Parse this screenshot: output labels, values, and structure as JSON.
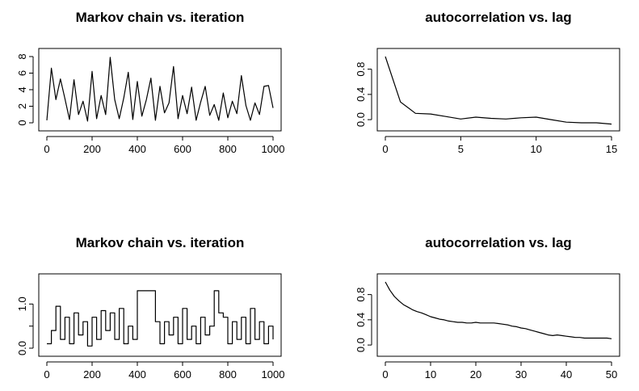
{
  "chart_data": [
    {
      "type": "line",
      "title": "Markov chain vs. iteration",
      "xlabel": "",
      "ylabel": "",
      "xlim": [
        0,
        1000
      ],
      "ylim": [
        0,
        8
      ],
      "xticks": [
        0,
        200,
        400,
        600,
        800,
        1000
      ],
      "yticks": [
        0,
        2,
        4,
        6,
        8
      ],
      "step": false,
      "series": [
        {
          "x": [
            0,
            20,
            40,
            60,
            80,
            100,
            120,
            140,
            160,
            180,
            200,
            220,
            240,
            260,
            280,
            300,
            320,
            340,
            360,
            380,
            400,
            420,
            440,
            460,
            480,
            500,
            520,
            540,
            560,
            580,
            600,
            620,
            640,
            660,
            680,
            700,
            720,
            740,
            760,
            780,
            800,
            820,
            840,
            860,
            880,
            900,
            920,
            940,
            960,
            980,
            1000
          ],
          "values": [
            0.3,
            6.6,
            2.8,
            5.3,
            2.9,
            0.4,
            5.2,
            1.0,
            2.6,
            0.2,
            6.2,
            0.5,
            3.3,
            1.0,
            7.9,
            2.8,
            0.5,
            3.0,
            6.1,
            0.4,
            5.0,
            0.8,
            2.8,
            5.4,
            0.3,
            4.4,
            1.2,
            2.4,
            6.8,
            0.5,
            3.3,
            1.1,
            4.3,
            0.3,
            2.5,
            4.4,
            0.9,
            2.2,
            0.3,
            3.6,
            0.6,
            2.6,
            1.1,
            5.7,
            2.1,
            0.3,
            2.4,
            1.0,
            4.4,
            4.5,
            1.8
          ]
        }
      ]
    },
    {
      "type": "line",
      "title": "autocorrelation vs. lag",
      "xlabel": "",
      "ylabel": "",
      "xlim": [
        0,
        15
      ],
      "ylim": [
        -0.05,
        1.0
      ],
      "xticks": [
        0,
        5,
        10,
        15
      ],
      "yticks": [
        0.0,
        0.4,
        0.8
      ],
      "yticklabels": [
        "0.0",
        "0.4",
        "0.8"
      ],
      "step": false,
      "series": [
        {
          "x": [
            0,
            1,
            2,
            3,
            4,
            5,
            6,
            7,
            8,
            9,
            10,
            11,
            12,
            13,
            14,
            15
          ],
          "values": [
            1.0,
            0.28,
            0.1,
            0.09,
            0.05,
            0.01,
            0.04,
            0.02,
            0.01,
            0.03,
            0.04,
            0.0,
            -0.04,
            -0.05,
            -0.05,
            -0.07
          ]
        }
      ]
    },
    {
      "type": "line",
      "title": "Markov chain vs. iteration",
      "xlabel": "",
      "ylabel": "",
      "xlim": [
        0,
        1000
      ],
      "ylim": [
        0.0,
        1.5
      ],
      "xticks": [
        0,
        200,
        400,
        600,
        800,
        1000
      ],
      "yticks": [
        0.0,
        0.5,
        1.0
      ],
      "yticklabels": [
        "0.0",
        "",
        "1.0"
      ],
      "step": true,
      "series": [
        {
          "x": [
            0,
            20,
            40,
            60,
            80,
            100,
            120,
            140,
            160,
            180,
            200,
            220,
            240,
            260,
            280,
            300,
            320,
            340,
            360,
            380,
            400,
            420,
            440,
            460,
            480,
            500,
            520,
            540,
            560,
            580,
            600,
            620,
            640,
            660,
            680,
            700,
            720,
            740,
            760,
            780,
            800,
            820,
            840,
            860,
            880,
            900,
            920,
            940,
            960,
            980,
            1000
          ],
          "values": [
            0.1,
            0.4,
            0.95,
            0.2,
            0.7,
            0.1,
            0.8,
            0.3,
            0.6,
            0.05,
            0.7,
            0.2,
            0.85,
            0.4,
            0.8,
            0.2,
            0.9,
            0.1,
            0.5,
            0.2,
            1.3,
            1.3,
            1.3,
            1.3,
            0.6,
            0.1,
            0.6,
            0.3,
            0.7,
            0.1,
            0.9,
            0.2,
            0.5,
            0.1,
            0.7,
            0.3,
            0.5,
            1.3,
            0.8,
            0.7,
            0.1,
            0.6,
            0.2,
            0.7,
            0.1,
            0.9,
            0.2,
            0.6,
            0.1,
            0.5,
            0.2
          ]
        }
      ]
    },
    {
      "type": "line",
      "title": "autocorrelation vs. lag",
      "xlabel": "",
      "ylabel": "",
      "xlim": [
        0,
        50
      ],
      "ylim": [
        -0.05,
        1.0
      ],
      "xticks": [
        0,
        10,
        20,
        30,
        40,
        50
      ],
      "yticks": [
        0.0,
        0.4,
        0.8
      ],
      "yticklabels": [
        "0.0",
        "0.4",
        "0.8"
      ],
      "step": false,
      "series": [
        {
          "x": [
            0,
            1,
            2,
            3,
            4,
            5,
            6,
            7,
            8,
            9,
            10,
            11,
            12,
            13,
            14,
            15,
            16,
            17,
            18,
            19,
            20,
            21,
            22,
            23,
            24,
            25,
            26,
            27,
            28,
            29,
            30,
            31,
            32,
            33,
            34,
            35,
            36,
            37,
            38,
            39,
            40,
            41,
            42,
            43,
            44,
            45,
            46,
            47,
            48,
            49,
            50
          ],
          "values": [
            1.0,
            0.87,
            0.77,
            0.7,
            0.64,
            0.6,
            0.56,
            0.53,
            0.51,
            0.48,
            0.45,
            0.43,
            0.41,
            0.4,
            0.38,
            0.37,
            0.36,
            0.36,
            0.35,
            0.35,
            0.36,
            0.35,
            0.35,
            0.35,
            0.35,
            0.34,
            0.33,
            0.32,
            0.3,
            0.29,
            0.27,
            0.26,
            0.24,
            0.22,
            0.2,
            0.18,
            0.16,
            0.15,
            0.16,
            0.15,
            0.14,
            0.13,
            0.12,
            0.12,
            0.11,
            0.11,
            0.11,
            0.11,
            0.11,
            0.11,
            0.1
          ]
        }
      ]
    }
  ]
}
